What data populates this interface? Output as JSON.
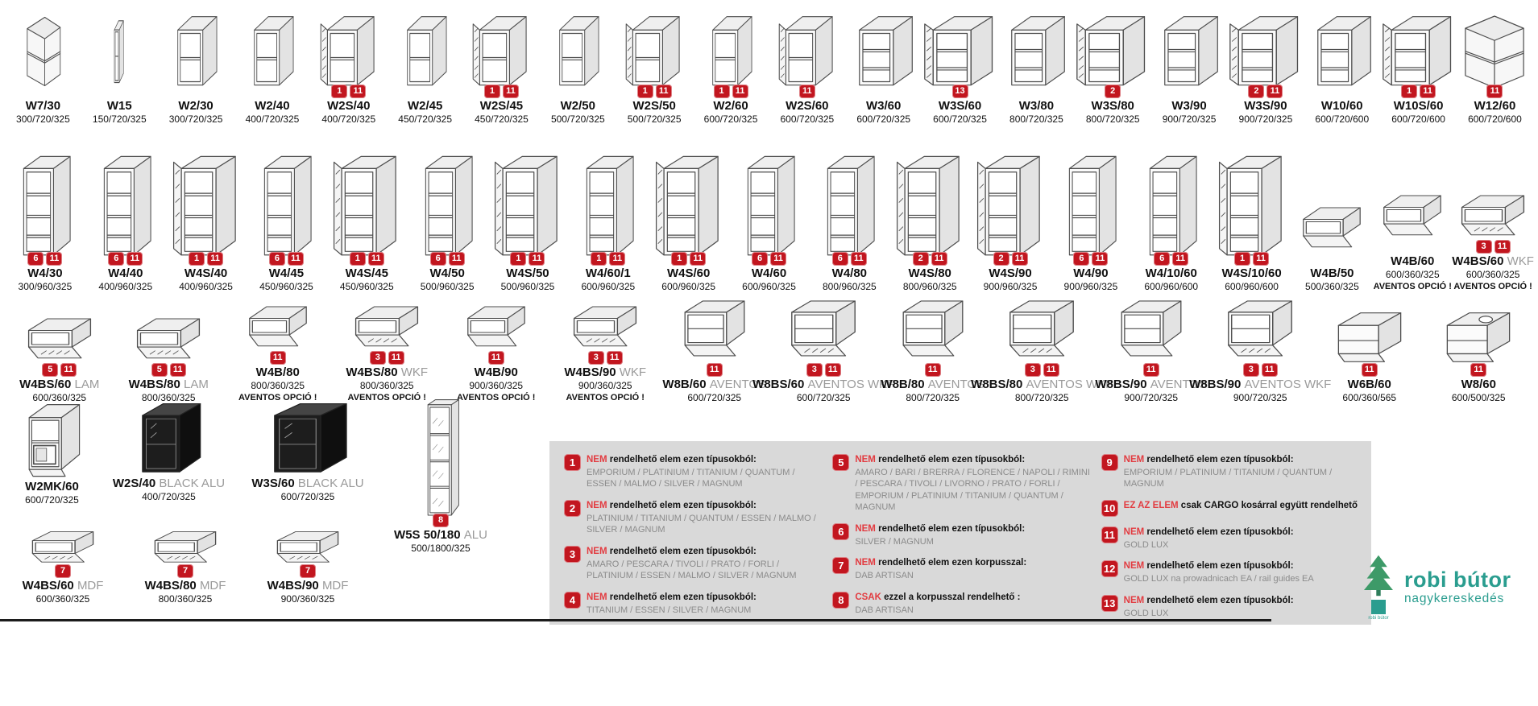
{
  "colors": {
    "badge-red": "#c2161f",
    "legend-red": "#e23c41",
    "legend-bg": "#d9d9d9",
    "suffix-gray": "#9a9a9a",
    "list-gray": "#8b8b8b",
    "teal": "#2a9d8f",
    "tree-green": "#3d9a68",
    "ink": "#111111"
  },
  "rows": [
    {
      "id": "row1",
      "align": "bottom",
      "items": [
        {
          "label": "W7/30",
          "dims": "300/720/325",
          "icon": "corner",
          "badges": []
        },
        {
          "label": "W15",
          "dims": "150/720/325",
          "icon": "narrow",
          "badges": []
        },
        {
          "label": "W2/30",
          "dims": "300/720/325",
          "icon": "open1",
          "badges": []
        },
        {
          "label": "W2/40",
          "dims": "400/720/325",
          "icon": "open1",
          "badges": []
        },
        {
          "label": "W2S/40",
          "dims": "400/720/325",
          "icon": "glass1",
          "badges": [
            "1",
            "11"
          ]
        },
        {
          "label": "W2/45",
          "dims": "450/720/325",
          "icon": "open1",
          "badges": []
        },
        {
          "label": "W2S/45",
          "dims": "450/720/325",
          "icon": "glass1",
          "badges": [
            "1",
            "11"
          ]
        },
        {
          "label": "W2/50",
          "dims": "500/720/325",
          "icon": "open1",
          "badges": []
        },
        {
          "label": "W2S/50",
          "dims": "500/720/325",
          "icon": "glass1",
          "badges": [
            "1",
            "11"
          ]
        },
        {
          "label": "W2/60",
          "dims": "600/720/325",
          "icon": "open1",
          "badges": [
            "1",
            "11"
          ]
        },
        {
          "label": "W2S/60",
          "dims": "600/720/325",
          "icon": "glass1",
          "badges": [
            "11"
          ]
        },
        {
          "label": "W3/60",
          "dims": "600/720/325",
          "icon": "open2",
          "badges": []
        },
        {
          "label": "W3S/60",
          "dims": "600/720/325",
          "icon": "glass2",
          "badges": [
            "13"
          ]
        },
        {
          "label": "W3/80",
          "dims": "800/720/325",
          "icon": "open2",
          "badges": []
        },
        {
          "label": "W3S/80",
          "dims": "800/720/325",
          "icon": "glass2",
          "badges": [
            "2"
          ]
        },
        {
          "label": "W3/90",
          "dims": "900/720/325",
          "icon": "open2",
          "badges": []
        },
        {
          "label": "W3S/90",
          "dims": "900/720/325",
          "icon": "glass2",
          "badges": [
            "2",
            "11"
          ]
        },
        {
          "label": "W10/60",
          "dims": "600/720/600",
          "icon": "open2",
          "badges": []
        },
        {
          "label": "W10S/60",
          "dims": "600/720/600",
          "icon": "glass2",
          "badges": [
            "1",
            "11"
          ]
        },
        {
          "label": "W12/60",
          "dims": "600/720/600",
          "icon": "cornerL",
          "badges": [
            "11"
          ]
        }
      ]
    },
    {
      "id": "row2",
      "align": "bottom",
      "items": [
        {
          "label": "W4/30",
          "dims": "300/960/325",
          "icon": "tall",
          "badges": [
            "6",
            "11"
          ]
        },
        {
          "label": "W4/40",
          "dims": "400/960/325",
          "icon": "tall",
          "badges": [
            "6",
            "11"
          ]
        },
        {
          "label": "W4S/40",
          "dims": "400/960/325",
          "icon": "tallglass",
          "badges": [
            "1",
            "11"
          ]
        },
        {
          "label": "W4/45",
          "dims": "450/960/325",
          "icon": "tall",
          "badges": [
            "6",
            "11"
          ]
        },
        {
          "label": "W4S/45",
          "dims": "450/960/325",
          "icon": "tallglass",
          "badges": [
            "1",
            "11"
          ]
        },
        {
          "label": "W4/50",
          "dims": "500/960/325",
          "icon": "tall",
          "badges": [
            "6",
            "11"
          ]
        },
        {
          "label": "W4S/50",
          "dims": "500/960/325",
          "icon": "tallglass",
          "badges": [
            "1",
            "11"
          ]
        },
        {
          "label": "W4/60/1",
          "dims": "600/960/325",
          "icon": "tall",
          "badges": [
            "1",
            "11"
          ]
        },
        {
          "label": "W4S/60",
          "dims": "600/960/325",
          "icon": "tallglass",
          "badges": [
            "1",
            "11"
          ]
        },
        {
          "label": "W4/60",
          "dims": "600/960/325",
          "icon": "tall",
          "badges": [
            "6",
            "11"
          ]
        },
        {
          "label": "W4/80",
          "dims": "800/960/325",
          "icon": "tall",
          "badges": [
            "6",
            "11"
          ]
        },
        {
          "label": "W4S/80",
          "dims": "800/960/325",
          "icon": "tallglass",
          "badges": [
            "2",
            "11"
          ]
        },
        {
          "label": "W4S/90",
          "dims": "900/960/325",
          "icon": "tallglass",
          "badges": [
            "2",
            "11"
          ]
        },
        {
          "label": "W4/90",
          "dims": "900/960/325",
          "icon": "tall",
          "badges": [
            "6",
            "11"
          ]
        },
        {
          "label": "W4/10/60",
          "dims": "600/960/600",
          "icon": "tall",
          "badges": [
            "6",
            "11"
          ]
        },
        {
          "label": "W4S/10/60",
          "dims": "600/960/600",
          "icon": "tallglass",
          "badges": [
            "1",
            "11"
          ]
        },
        {
          "label": "W4B/50",
          "dims": "500/360/325",
          "icon": "flip",
          "badges": []
        },
        {
          "label": "W4B/60",
          "dims": "600/360/325",
          "icon": "flip",
          "badges": [],
          "note": "AVENTOS OPCIÓ !"
        },
        {
          "label": "W4BS/60",
          "suffix": "WKF",
          "dims": "600/360/325",
          "icon": "flipglass",
          "badges": [
            "3",
            "11"
          ],
          "note": "AVENTOS OPCIÓ !"
        }
      ]
    },
    {
      "id": "row3",
      "align": "bottom",
      "items": [
        {
          "label": "W4BS/60",
          "suffix": "LAM",
          "dims": "600/360/325",
          "icon": "flipglass",
          "badges": [
            "5",
            "11"
          ]
        },
        {
          "label": "W4BS/80",
          "suffix": "LAM",
          "dims": "800/360/325",
          "icon": "flipglass",
          "badges": [
            "5",
            "11"
          ]
        },
        {
          "label": "W4B/80",
          "dims": "800/360/325",
          "icon": "flip",
          "badges": [
            "11"
          ],
          "note": "AVENTOS OPCIÓ !"
        },
        {
          "label": "W4BS/80",
          "suffix": "WKF",
          "dims": "800/360/325",
          "icon": "flipglass",
          "badges": [
            "3",
            "11"
          ],
          "note": "AVENTOS OPCIÓ !"
        },
        {
          "label": "W4B/90",
          "dims": "900/360/325",
          "icon": "flip",
          "badges": [
            "11"
          ],
          "note": "AVENTOS OPCIÓ !"
        },
        {
          "label": "W4BS/90",
          "suffix": "WKF",
          "dims": "900/360/325",
          "icon": "flipglass",
          "badges": [
            "3",
            "11"
          ],
          "note": "AVENTOS OPCIÓ !"
        },
        {
          "label": "W8B/60",
          "suffix": "AVENTOS",
          "dims": "600/720/325",
          "icon": "aventos",
          "badges": [
            "11"
          ]
        },
        {
          "label": "W8BS/60",
          "suffix": "AVENTOS WKF",
          "dims": "600/720/325",
          "icon": "aventosglass",
          "badges": [
            "3",
            "11"
          ]
        },
        {
          "label": "W8B/80",
          "suffix": "AVENTOS",
          "dims": "800/720/325",
          "icon": "aventos",
          "badges": [
            "11"
          ]
        },
        {
          "label": "W8BS/80",
          "suffix": "AVENTOS WKF",
          "dims": "800/720/325",
          "icon": "aventosglass",
          "badges": [
            "3",
            "11"
          ]
        },
        {
          "label": "W8BS/90",
          "suffix": "AVENTOS",
          "dims": "900/720/325",
          "icon": "aventos",
          "badges": [
            "11"
          ]
        },
        {
          "label": "W8BS/90",
          "suffix": "AVENTOS WKF",
          "dims": "900/720/325",
          "icon": "aventosglass",
          "badges": [
            "3",
            "11"
          ]
        },
        {
          "label": "W6B/60",
          "dims": "600/360/565",
          "icon": "hood",
          "badges": [
            "11"
          ]
        },
        {
          "label": "W8/60",
          "dims": "600/500/325",
          "icon": "hoodc",
          "badges": [
            "11"
          ]
        }
      ]
    },
    {
      "id": "row4a",
      "align": "top",
      "items": [
        {
          "label": "W2MK/60",
          "dims": "600/720/325",
          "icon": "mw",
          "badges": []
        },
        {
          "label": "W2S/40",
          "suffix": "BLACK ALU",
          "dims": "400/720/325",
          "icon": "black",
          "badges": []
        },
        {
          "label": "W3S/60",
          "suffix": "BLACK ALU",
          "dims": "600/720/325",
          "icon": "blackwide",
          "sym": "black",
          "badges": []
        },
        {
          "label": "W5S 50/180",
          "suffix": "ALU",
          "dims": "500/1800/325",
          "icon": "vitrine",
          "badges": [
            "8"
          ]
        }
      ]
    },
    {
      "id": "row4b",
      "align": "top",
      "items": [
        {
          "label": "W4BS/60",
          "suffix": "MDF",
          "dims": "600/360/325",
          "icon": "flipglass",
          "badges": [
            "7"
          ]
        },
        {
          "label": "W4BS/80",
          "suffix": "MDF",
          "dims": "800/360/325",
          "icon": "flipglass",
          "badges": [
            "7"
          ]
        },
        {
          "label": "W4BS/90",
          "suffix": "MDF",
          "dims": "900/360/325",
          "icon": "flipglass",
          "badges": [
            "7"
          ]
        }
      ]
    }
  ],
  "legend": {
    "columns": [
      [
        {
          "num": "1",
          "lead": "NEM",
          "head": "rendelhető elem ezen típusokból:",
          "list": "EMPORIUM / PLATINIUM / TITANIUM / QUANTUM / ESSEN / MALMO / SILVER / MAGNUM"
        },
        {
          "num": "2",
          "lead": "NEM",
          "head": "rendelhető elem ezen típusokból:",
          "list": "PLATINIUM / TITANIUM / QUANTUM / ESSEN / MALMO / SILVER / MAGNUM"
        },
        {
          "num": "3",
          "lead": "NEM",
          "head": "rendelhető elem ezen típusokból:",
          "list": "AMARO / PESCARA / TIVOLI / PRATO / FORLI / PLATINIUM / ESSEN / MALMO / SILVER / MAGNUM"
        },
        {
          "num": "4",
          "lead": "NEM",
          "head": "rendelhető elem ezen típusokból:",
          "list": "TITANIUM / ESSEN / SILVER / MAGNUM"
        }
      ],
      [
        {
          "num": "5",
          "lead": "NEM",
          "head": "rendelhető elem ezen típusokból:",
          "list": "AMARO / BARI / BRERRA / FLORENCE / NAPOLI / RIMINI / PESCARA / TIVOLI / LIVORNO / PRATO / FORLI / EMPORIUM / PLATINIUM / TITANIUM / QUANTUM / MAGNUM"
        },
        {
          "num": "6",
          "lead": "NEM",
          "head": "rendelhető elem ezen típusokból:",
          "list": "SILVER / MAGNUM"
        },
        {
          "num": "7",
          "lead": "NEM",
          "head": "rendelhető elem ezen korpusszal:",
          "list": "DAB ARTISAN"
        },
        {
          "num": "8",
          "lead": "CSAK",
          "head": "ezzel a korpusszal rendelhető :",
          "list": "DAB ARTISAN"
        }
      ],
      [
        {
          "num": "9",
          "lead": "NEM",
          "head": "rendelhető elem ezen típusokból:",
          "list": "EMPORIUM / PLATINIUM / TITANIUM / QUANTUM / MAGNUM"
        },
        {
          "num": "10",
          "lead": "EZ AZ ELEM",
          "head": "csak CARGO kosárral együtt rendelhető",
          "list": ""
        },
        {
          "num": "11",
          "lead": "NEM",
          "head": "rendelhető elem ezen típusokból:",
          "list": "GOLD LUX"
        },
        {
          "num": "12",
          "lead": "NEM",
          "head": "rendelhető elem ezen típusokból:",
          "list": "GOLD LUX na prowadnicach EA / rail guides EA"
        },
        {
          "num": "13",
          "lead": "NEM",
          "head": "rendelhető elem ezen típusokból:",
          "list": "GOLD LUX"
        }
      ]
    ]
  },
  "logo": {
    "title": "robi bútor",
    "subtitle": "nagykereskedés",
    "caption": "robi bútor"
  }
}
